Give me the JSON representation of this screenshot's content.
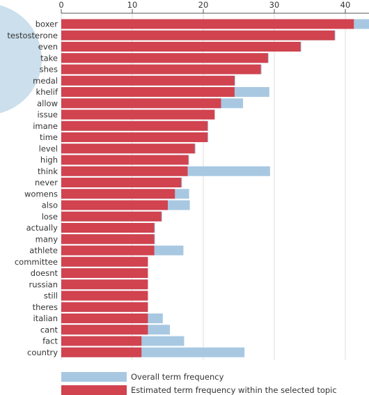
{
  "chart_data": {
    "type": "bar",
    "orientation": "horizontal",
    "title": "",
    "xlabel": "",
    "ylabel": "",
    "xlim": [
      0,
      43.5
    ],
    "x_ticks": [
      "0",
      "10",
      "20",
      "30",
      "40"
    ],
    "grid": true,
    "legend_placement": "bottom-left",
    "categories": [
      "boxer",
      "testosterone",
      "even",
      "take",
      "shes",
      "medal",
      "khelif",
      "allow",
      "issue",
      "imane",
      "time",
      "level",
      "high",
      "think",
      "never",
      "womens",
      "also",
      "lose",
      "actually",
      "many",
      "athlete",
      "committee",
      "doesnt",
      "russian",
      "still",
      "theres",
      "italian",
      "cant",
      "fact",
      "country"
    ],
    "series": [
      {
        "name": "Overall term frequency",
        "color": "#a8c8e2",
        "values": [
          43.5,
          38.6,
          33.8,
          29.2,
          28.2,
          24.5,
          29.3,
          25.6,
          21.6,
          20.7,
          20.7,
          18.9,
          18.0,
          29.4,
          17.0,
          18.0,
          18.1,
          14.2,
          13.2,
          13.2,
          17.2,
          12.2,
          12.2,
          12.2,
          12.2,
          12.2,
          14.3,
          15.3,
          17.3,
          25.8
        ]
      },
      {
        "name": "Estimated term frequency within the selected topic",
        "color": "#d0434f",
        "values": [
          41.2,
          38.5,
          33.7,
          29.1,
          28.1,
          24.4,
          24.4,
          22.5,
          21.6,
          20.6,
          20.6,
          18.8,
          17.9,
          17.8,
          16.9,
          16.0,
          15.0,
          14.1,
          13.1,
          13.1,
          13.1,
          12.2,
          12.2,
          12.2,
          12.2,
          12.2,
          12.2,
          12.2,
          11.3,
          11.3
        ]
      }
    ]
  },
  "decor": {
    "bubble_color": "#c6dbea"
  }
}
